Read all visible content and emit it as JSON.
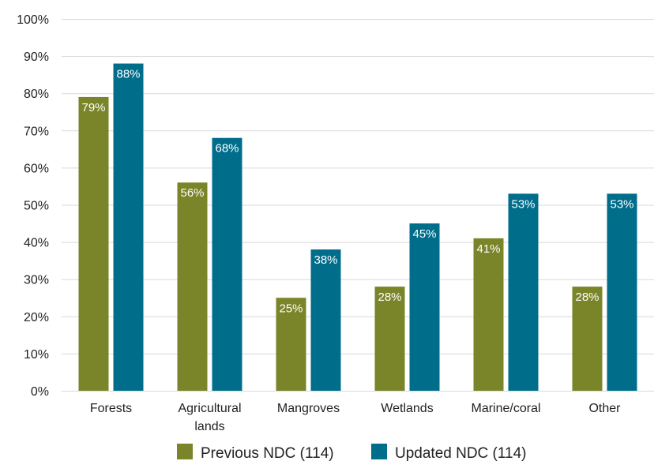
{
  "chart_data": {
    "type": "bar",
    "categories": [
      [
        "Forests"
      ],
      [
        "Agricultural",
        "lands"
      ],
      [
        "Mangroves"
      ],
      [
        "Wetlands"
      ],
      [
        "Marine/coral"
      ],
      [
        "Other"
      ]
    ],
    "series": [
      {
        "name": "Previous NDC (114)",
        "color": "#7a8429",
        "values": [
          79,
          56,
          25,
          28,
          41,
          28
        ],
        "value_labels": [
          "79%",
          "56%",
          "25%",
          "28%",
          "41%",
          "28%"
        ]
      },
      {
        "name": "Updated NDC (114)",
        "color": "#006d8b",
        "values": [
          88,
          68,
          38,
          45,
          53,
          53
        ],
        "value_labels": [
          "88%",
          "68%",
          "38%",
          "45%",
          "53%",
          "53%"
        ]
      }
    ],
    "ylim": [
      0,
      100
    ],
    "yticks": [
      0,
      10,
      20,
      30,
      40,
      50,
      60,
      70,
      80,
      90,
      100
    ],
    "ytick_labels": [
      "0%",
      "10%",
      "20%",
      "30%",
      "40%",
      "50%",
      "60%",
      "70%",
      "80%",
      "90%",
      "100%"
    ],
    "grid": true,
    "legend": "bottom-center",
    "title": "",
    "xlabel": "",
    "ylabel": ""
  }
}
